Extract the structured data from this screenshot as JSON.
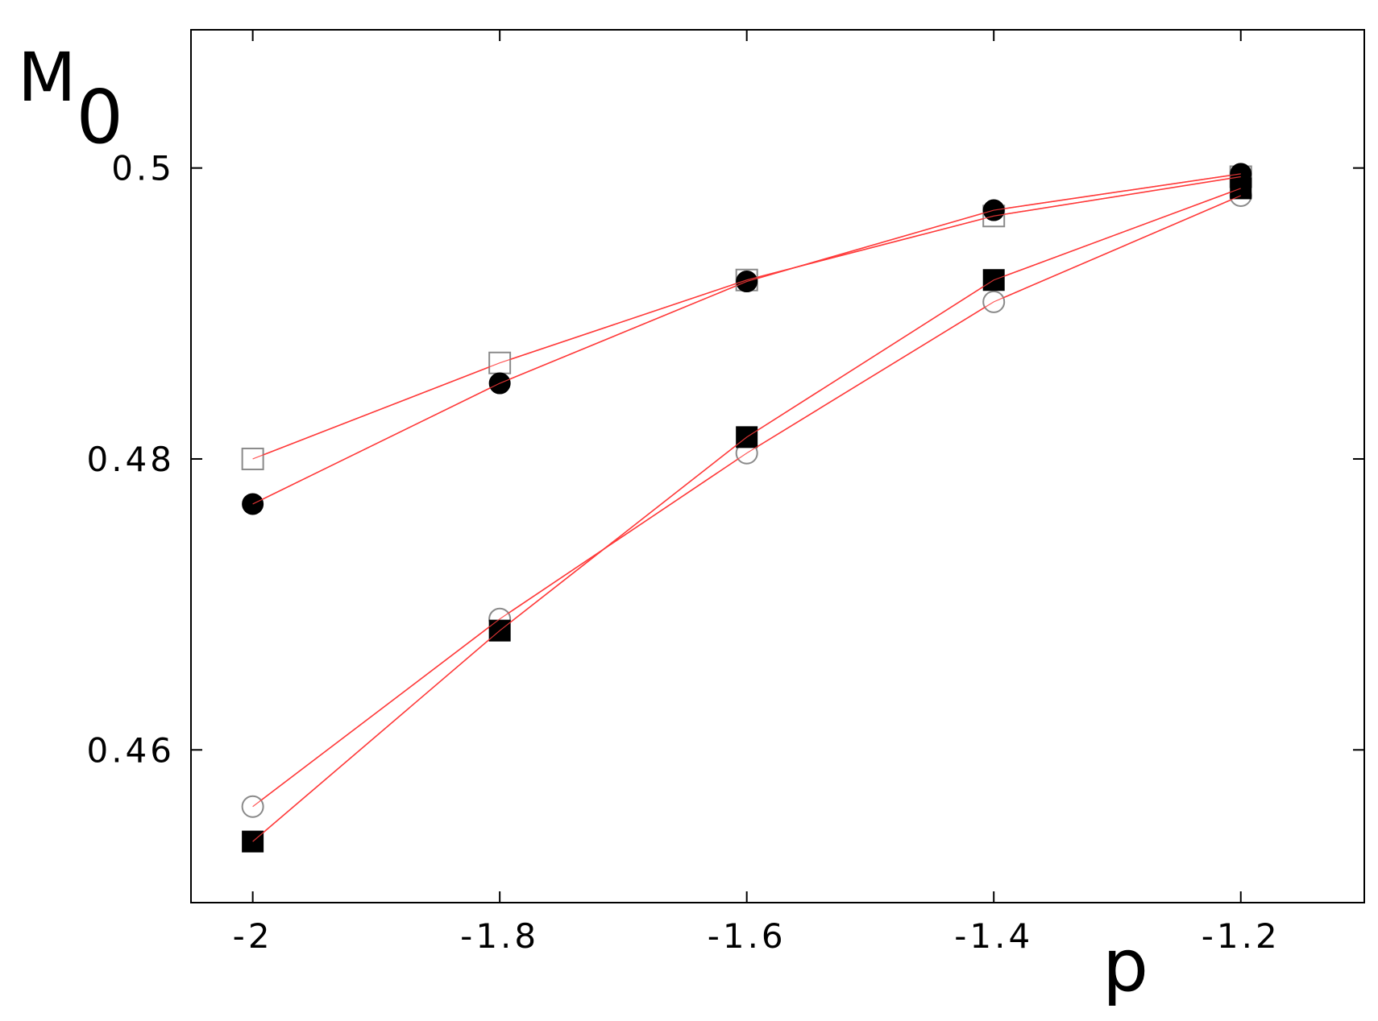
{
  "chart_data": {
    "type": "line",
    "title": "",
    "xlabel": "p",
    "ylabel": "M",
    "ylabel_subscript": "0",
    "xlim": [
      -2.05,
      -1.1
    ],
    "ylim": [
      0.4495,
      0.5095
    ],
    "x_ticks": [
      -2,
      -1.8,
      -1.6,
      -1.4,
      -1.2
    ],
    "x_tick_labels": [
      "-2",
      "-1.8",
      "-1.6",
      "-1.4",
      "-1.2"
    ],
    "y_ticks": [
      0.46,
      0.48,
      0.5
    ],
    "y_tick_labels": [
      "0.46",
      "0.48",
      "0.5"
    ],
    "grid": false,
    "legend": "none",
    "line_color": "#ff3b3b",
    "x": [
      -2,
      -1.8,
      -1.6,
      -1.4,
      -1.2
    ],
    "series": [
      {
        "marker": "open-square",
        "values": [
          0.48,
          0.4866,
          0.4923,
          0.4967,
          0.4994
        ]
      },
      {
        "marker": "filled-circle",
        "values": [
          0.4769,
          0.4852,
          0.4922,
          0.4971,
          0.4996
        ]
      },
      {
        "marker": "open-circle",
        "values": [
          0.4561,
          0.469,
          0.4804,
          0.4908,
          0.4981
        ]
      },
      {
        "marker": "filled-square",
        "values": [
          0.4537,
          0.4682,
          0.4815,
          0.4923,
          0.4986
        ]
      }
    ]
  }
}
